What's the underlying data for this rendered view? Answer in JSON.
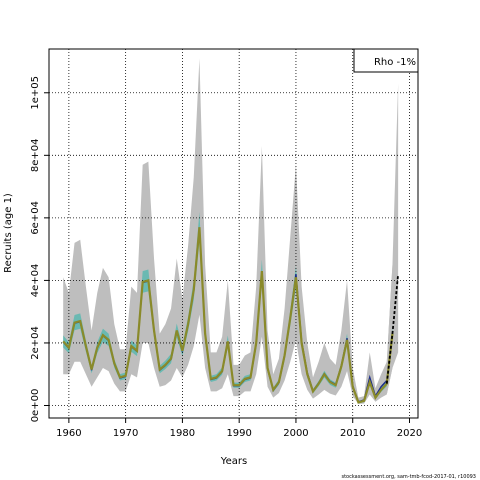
{
  "chart_data": {
    "type": "line",
    "title": "",
    "xlabel": "Years",
    "ylabel": "Recruits (age 1)",
    "xlim": [
      1956.5,
      2021.5
    ],
    "ylim": [
      -4000,
      114000
    ],
    "xticks": [
      1960,
      1970,
      1980,
      1990,
      2000,
      2010,
      2020
    ],
    "xtick_labels": [
      "1960",
      "1970",
      "1980",
      "1990",
      "2000",
      "2010",
      "2020"
    ],
    "yticks": [
      0,
      20000,
      40000,
      60000,
      80000,
      100000
    ],
    "ytick_labels": [
      "0e+00",
      "2e+04",
      "4e+04",
      "6e+04",
      "8e+04",
      "1e+05"
    ],
    "grid": true,
    "legend": {
      "position": "top-right",
      "text": "Rho -1%"
    },
    "caption": "stockassessment.org, sam-tmb-fcod-2017-01, r10093",
    "colors": {
      "band": "#bebebe",
      "inner_band": "#5cb8b0",
      "base_line": "#8a8a2a",
      "peel_line": "#1a2a8a",
      "projection": "#000000"
    },
    "series": [
      {
        "x": [
          1959,
          1960,
          1961,
          1962,
          1963,
          1964,
          1965,
          1966,
          1967,
          1968,
          1969,
          1970,
          1971,
          1972,
          1973,
          1974,
          1975,
          1976,
          1977,
          1978,
          1979,
          1980,
          1981,
          1982,
          1983,
          1984,
          1985,
          1986,
          1987,
          1988,
          1989,
          1990,
          1991,
          1992,
          1993,
          1994,
          1995,
          1996,
          1997,
          1998,
          1999,
          2000,
          2001,
          2002,
          2003,
          2004,
          2005,
          2006,
          2007,
          2008,
          2009,
          2010,
          2011,
          2012,
          2013,
          2014,
          2015,
          2016,
          2017
        ],
        "values": [
          20500,
          18500,
          26500,
          27000,
          19000,
          11500,
          18500,
          22500,
          21000,
          13500,
          9000,
          9500,
          19000,
          17500,
          39500,
          40000,
          24000,
          11500,
          13000,
          15000,
          24000,
          17500,
          26000,
          37000,
          57000,
          23000,
          8500,
          9000,
          11000,
          20500,
          6500,
          6500,
          8500,
          9000,
          20000,
          43000,
          12000,
          5000,
          7500,
          16000,
          28000,
          41000,
          20000,
          10000,
          4500,
          7000,
          10000,
          7500,
          6500,
          12500,
          21000,
          6000,
          1000,
          1500,
          7500,
          2500,
          5000,
          7000,
          23000
        ],
        "lower": [
          10000,
          10000,
          14000,
          14000,
          10000,
          6000,
          9000,
          12000,
          11000,
          7000,
          4500,
          4500,
          10000,
          9000,
          20000,
          20000,
          12000,
          6000,
          6500,
          8000,
          12000,
          9000,
          13000,
          19000,
          29000,
          12000,
          4500,
          4500,
          5500,
          10000,
          3000,
          3000,
          4500,
          4500,
          10000,
          22000,
          6000,
          2500,
          4000,
          8000,
          14000,
          21000,
          10000,
          5000,
          2200,
          3500,
          5000,
          3800,
          3200,
          6000,
          11000,
          3000,
          500,
          600,
          3500,
          1200,
          2500,
          3500,
          12000
        ],
        "upper": [
          41000,
          36000,
          52000,
          53000,
          38000,
          24000,
          36000,
          44000,
          41000,
          26000,
          18000,
          18000,
          38000,
          36000,
          77000,
          78000,
          47000,
          23000,
          26000,
          31000,
          47000,
          34000,
          51000,
          73000,
          111000,
          45000,
          17000,
          17000,
          22000,
          40000,
          13000,
          13000,
          16000,
          17000,
          38000,
          83000,
          24000,
          10000,
          15000,
          31000,
          54000,
          77000,
          38000,
          20000,
          9000,
          14000,
          20000,
          15000,
          13000,
          24000,
          40000,
          12000,
          2500,
          3000,
          17000,
          5500,
          10000,
          14000,
          45000
        ]
      },
      {
        "x": [
          1959,
          1960,
          1961,
          1962,
          1963,
          1964,
          1965,
          1966,
          1967,
          1968,
          1969,
          1970,
          1971,
          1972,
          1973,
          1974,
          1975,
          1976,
          1977,
          1978,
          1979,
          1980,
          1981,
          1982,
          1983,
          1984,
          1985,
          1986,
          1987,
          1988,
          1989,
          1990,
          1991,
          1992,
          1993,
          1994,
          1995,
          1996,
          1997,
          1998,
          1999,
          2000,
          2001,
          2002,
          2003,
          2004,
          2005,
          2006,
          2007,
          2008,
          2009,
          2010,
          2011,
          2012,
          2013,
          2014,
          2015,
          2016
        ],
        "values": [
          20300,
          18300,
          26300,
          26800,
          18800,
          11300,
          18300,
          22300,
          20800,
          13300,
          8800,
          9300,
          18800,
          17300,
          39300,
          39800,
          23800,
          11300,
          12800,
          14800,
          23800,
          17300,
          25800,
          36800,
          56800,
          22800,
          8300,
          8800,
          10800,
          20300,
          6300,
          6300,
          8300,
          8800,
          19800,
          42800,
          11800,
          4800,
          7300,
          15800,
          27800,
          42000,
          20500,
          10500,
          4700,
          7200,
          10200,
          7700,
          6700,
          12800,
          21500,
          6300,
          1200,
          1800,
          9000,
          3000,
          6000,
          8000
        ]
      },
      {
        "x": [
          2016,
          2017,
          2018
        ],
        "values": [
          7000,
          23000,
          42000
        ],
        "upper": [
          14000,
          45000,
          103000
        ],
        "lower": [
          3500,
          12000,
          17000
        ]
      }
    ]
  }
}
